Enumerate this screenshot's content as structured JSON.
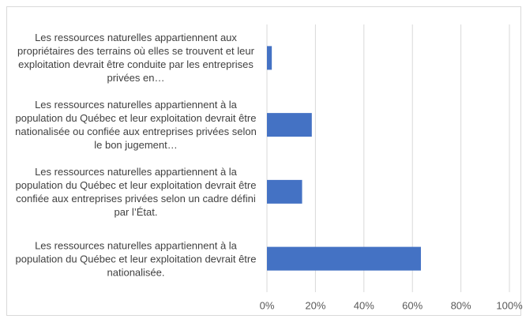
{
  "chart_data": {
    "type": "barh",
    "categories": [
      "Les ressources naturelles appartiennent aux propriétaires des terrains où elles se trouvent et leur exploitation devrait être conduite par les entreprises privées en…",
      "Les ressources naturelles appartiennent à la population du Québec et leur exploitation devrait être nationalisée ou confiée aux entreprises privées selon le bon jugement…",
      "Les ressources naturelles appartiennent à la population du Québec et leur exploitation devrait être confiée aux entreprises privées selon un cadre défini par l’État.",
      "Les ressources naturelles appartiennent à la population du Québec et leur exploitation devrait être nationalisée."
    ],
    "values": [
      2,
      18.5,
      14.5,
      63.5
    ],
    "color": "#4472c4",
    "xlim": [
      0,
      100
    ],
    "xticks": [
      {
        "value": 0,
        "label": "0%"
      },
      {
        "value": 20,
        "label": "20%"
      },
      {
        "value": 40,
        "label": "40%"
      },
      {
        "value": 60,
        "label": "60%"
      },
      {
        "value": 80,
        "label": "80%"
      },
      {
        "value": 100,
        "label": "100%"
      }
    ],
    "grid": true
  }
}
